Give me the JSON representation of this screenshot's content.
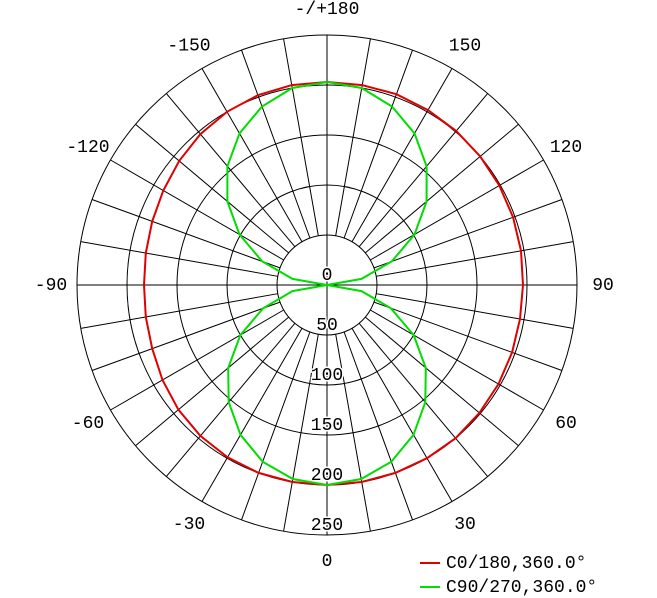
{
  "chart_data": {
    "type": "polar",
    "theta": [
      -180,
      -170,
      -160,
      -150,
      -140,
      -130,
      -120,
      -110,
      -100,
      -90,
      -80,
      -70,
      -60,
      -50,
      -40,
      -30,
      -20,
      -10,
      0,
      10,
      20,
      30,
      40,
      50,
      60,
      70,
      80,
      90,
      100,
      110,
      120,
      130,
      140,
      150,
      160,
      170,
      180
    ],
    "series": [
      {
        "name": "C0/180,360.0°",
        "color": "#e00000",
        "values": [
          203,
          203,
          202,
          200,
          197,
          193,
          189,
          186,
          184,
          183,
          184,
          186,
          190,
          194,
          197,
          199,
          200,
          200,
          200,
          200,
          200,
          200,
          200,
          199,
          198,
          197,
          196,
          196,
          197,
          198,
          199,
          200,
          201,
          202,
          203,
          203,
          203
        ]
      },
      {
        "name": "C90/270,360.0°",
        "color": "#00dd00",
        "values": [
          203,
          200,
          190,
          175,
          155,
          130,
          101,
          69,
          35,
          0,
          35,
          68,
          100,
          129,
          153,
          173,
          188,
          197,
          200,
          197,
          188,
          173,
          153,
          129,
          100,
          68,
          35,
          0,
          35,
          69,
          101,
          130,
          155,
          175,
          190,
          200,
          203
        ]
      }
    ],
    "rlim": [
      0,
      250
    ],
    "rticks": [
      0,
      50,
      100,
      150,
      200,
      250
    ],
    "thetaticks": [
      -150,
      -120,
      -90,
      -60,
      -30,
      0,
      30,
      60,
      90,
      120,
      150,
      {
        "value": 180,
        "label": "-/+180"
      }
    ],
    "grid_step_deg": 10
  }
}
